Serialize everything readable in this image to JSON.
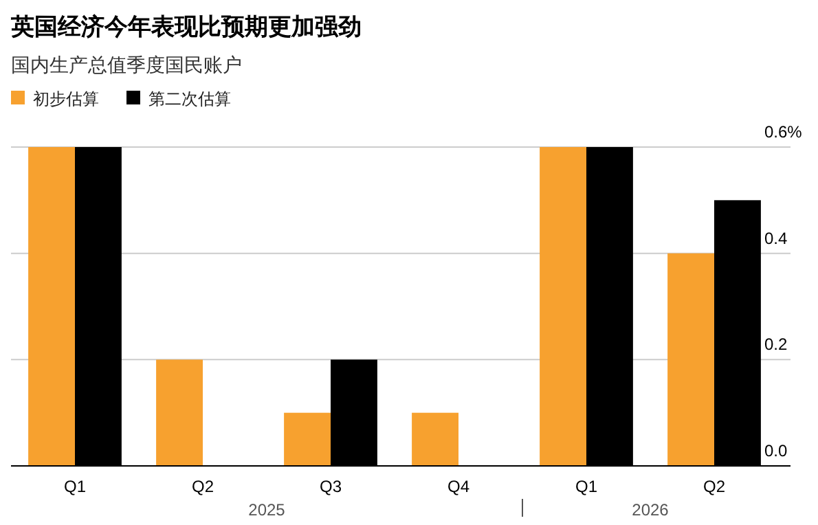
{
  "chart_data": {
    "type": "bar",
    "title": "英国经济今年表现比预期更加强劲",
    "subtitle": "国内生产总值季度国民账户",
    "categories": [
      "Q1",
      "Q2",
      "Q3",
      "Q4",
      "Q1",
      "Q2"
    ],
    "series": [
      {
        "name": "初步估算",
        "color": "#f7a12f",
        "values": [
          0.6,
          0.2,
          0.1,
          0.1,
          0.6,
          0.4
        ]
      },
      {
        "name": "第二次估算",
        "color": "#000000",
        "values": [
          0.6,
          0,
          0.2,
          0,
          0.6,
          0.5
        ]
      }
    ],
    "ylim": [
      0,
      0.6
    ],
    "yticks": [
      {
        "value": 0,
        "label": "0.0"
      },
      0.2,
      0.4,
      {
        "value": 0.6,
        "label": "0.6%"
      }
    ],
    "grid": "y",
    "legend": "top left",
    "annotations": [
      "2025",
      "2026"
    ]
  }
}
